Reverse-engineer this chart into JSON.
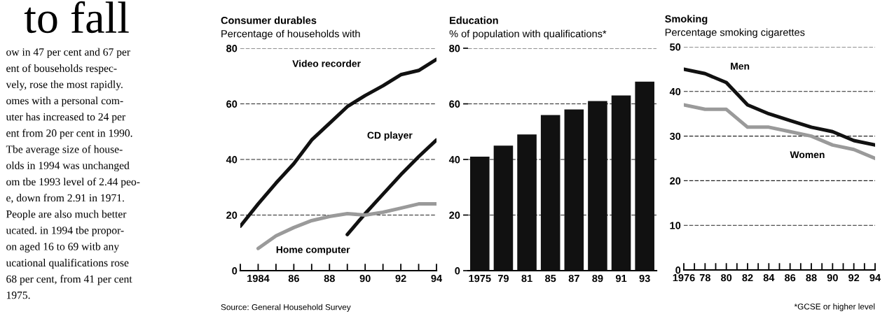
{
  "chart_data": [
    {
      "type": "other",
      "title": "to fall",
      "annotations": [
        "ow in 47 per cent and 67 per",
        "ent of bouseholds respec-",
        "vely, rose the most rapidly.",
        "omes with a personal com-",
        "uter has increased to 24 per",
        "ent from 20 per cent in 1990.",
        "Tbe average size of house-",
        "olds in 1994 was unchanged",
        "om tbe 1993 level of 2.44 peo-",
        "e, down from 2.91 in 1971.",
        "People are also much better",
        "ucated. in 1994 tbe propor-",
        "on aged 16 to 69 witb any",
        "ucational qualifications rose",
        "68 per cent, from 41 per cent",
        "1975."
      ]
    },
    {
      "type": "line",
      "title": "Consumer durables",
      "subtitle": "Percentage of households with",
      "grid": "y",
      "xlim": [
        1983,
        1994
      ],
      "ylim": [
        0,
        80
      ],
      "yticks": [
        0,
        20,
        40,
        60,
        80
      ],
      "xticks": [
        {
          "value": 1983,
          "label": null
        },
        {
          "value": 1984,
          "label": "1984"
        },
        {
          "value": 1985,
          "label": null
        },
        {
          "value": 1986,
          "label": "86"
        },
        {
          "value": 1987,
          "label": null
        },
        {
          "value": 1988,
          "label": "88"
        },
        {
          "value": 1989,
          "label": null
        },
        {
          "value": 1990,
          "label": "90"
        },
        {
          "value": 1991,
          "label": null
        },
        {
          "value": 1992,
          "label": "92"
        },
        {
          "value": 1993,
          "label": null
        },
        {
          "value": 1994,
          "label": "94"
        }
      ],
      "series": [
        {
          "name": "Video recorder",
          "color": "#111111",
          "x": [
            1983,
            1984,
            1985,
            1986,
            1987,
            1988,
            1989,
            1990,
            1991,
            1992,
            1993,
            1994
          ],
          "values": [
            16,
            24,
            31.5,
            38.5,
            47,
            53,
            59,
            63,
            66.5,
            70.5,
            72,
            76
          ]
        },
        {
          "name": "CD player",
          "color": "#111111",
          "x": [
            1989,
            1990,
            1991,
            1992,
            1993,
            1994
          ],
          "values": [
            13,
            20.5,
            27.5,
            34.5,
            41,
            47
          ]
        },
        {
          "name": "Home computer",
          "color": "#9a9a9a",
          "x": [
            1984,
            1985,
            1986,
            1987,
            1988,
            1989,
            1990,
            1991,
            1992,
            1993,
            1994
          ],
          "values": [
            8,
            12.5,
            15.5,
            18,
            19.5,
            20.5,
            20,
            21,
            22.5,
            24,
            24
          ]
        }
      ],
      "annotations": [
        "Source: General Household Survey"
      ]
    },
    {
      "type": "bar",
      "title": "Education",
      "subtitle": "% of population with qualifications*",
      "grid": "y",
      "ylim": [
        0,
        80
      ],
      "yticks": [
        0,
        20,
        40,
        60,
        80
      ],
      "categories": [
        "1975",
        "79",
        "81",
        "85",
        "87",
        "89",
        "91",
        "93"
      ],
      "values": [
        41,
        45,
        49,
        56,
        58,
        61,
        63,
        68
      ],
      "color": "#111111"
    },
    {
      "type": "line",
      "title": "Smoking",
      "subtitle": "Percentage smoking cigarettes",
      "grid": "y",
      "xlim": [
        1976,
        1994
      ],
      "ylim": [
        0,
        50
      ],
      "yticks": [
        0,
        10,
        20,
        30,
        40,
        50
      ],
      "xticks": [
        {
          "value": 1976,
          "label": "1976"
        },
        {
          "value": 1977,
          "label": null
        },
        {
          "value": 1978,
          "label": "78"
        },
        {
          "value": 1979,
          "label": null
        },
        {
          "value": 1980,
          "label": "80"
        },
        {
          "value": 1981,
          "label": null
        },
        {
          "value": 1982,
          "label": "82"
        },
        {
          "value": 1983,
          "label": null
        },
        {
          "value": 1984,
          "label": "84"
        },
        {
          "value": 1985,
          "label": null
        },
        {
          "value": 1986,
          "label": "86"
        },
        {
          "value": 1987,
          "label": null
        },
        {
          "value": 1988,
          "label": "88"
        },
        {
          "value": 1989,
          "label": null
        },
        {
          "value": 1990,
          "label": "90"
        },
        {
          "value": 1991,
          "label": null
        },
        {
          "value": 1992,
          "label": "92"
        },
        {
          "value": 1993,
          "label": null
        },
        {
          "value": 1994,
          "label": "94"
        }
      ],
      "series": [
        {
          "name": "Men",
          "color": "#111111",
          "x": [
            1976,
            1978,
            1980,
            1982,
            1984,
            1986,
            1988,
            1990,
            1992,
            1994
          ],
          "values": [
            45,
            44,
            42,
            37,
            35,
            33.5,
            32,
            31,
            29,
            28
          ]
        },
        {
          "name": "Women",
          "color": "#9a9a9a",
          "x": [
            1976,
            1978,
            1980,
            1982,
            1984,
            1986,
            1988,
            1990,
            1992,
            1994
          ],
          "values": [
            37,
            36,
            36,
            32,
            32,
            31,
            30,
            28,
            27,
            25
          ]
        }
      ],
      "annotations": [
        "*GCSE or higher level"
      ]
    }
  ]
}
